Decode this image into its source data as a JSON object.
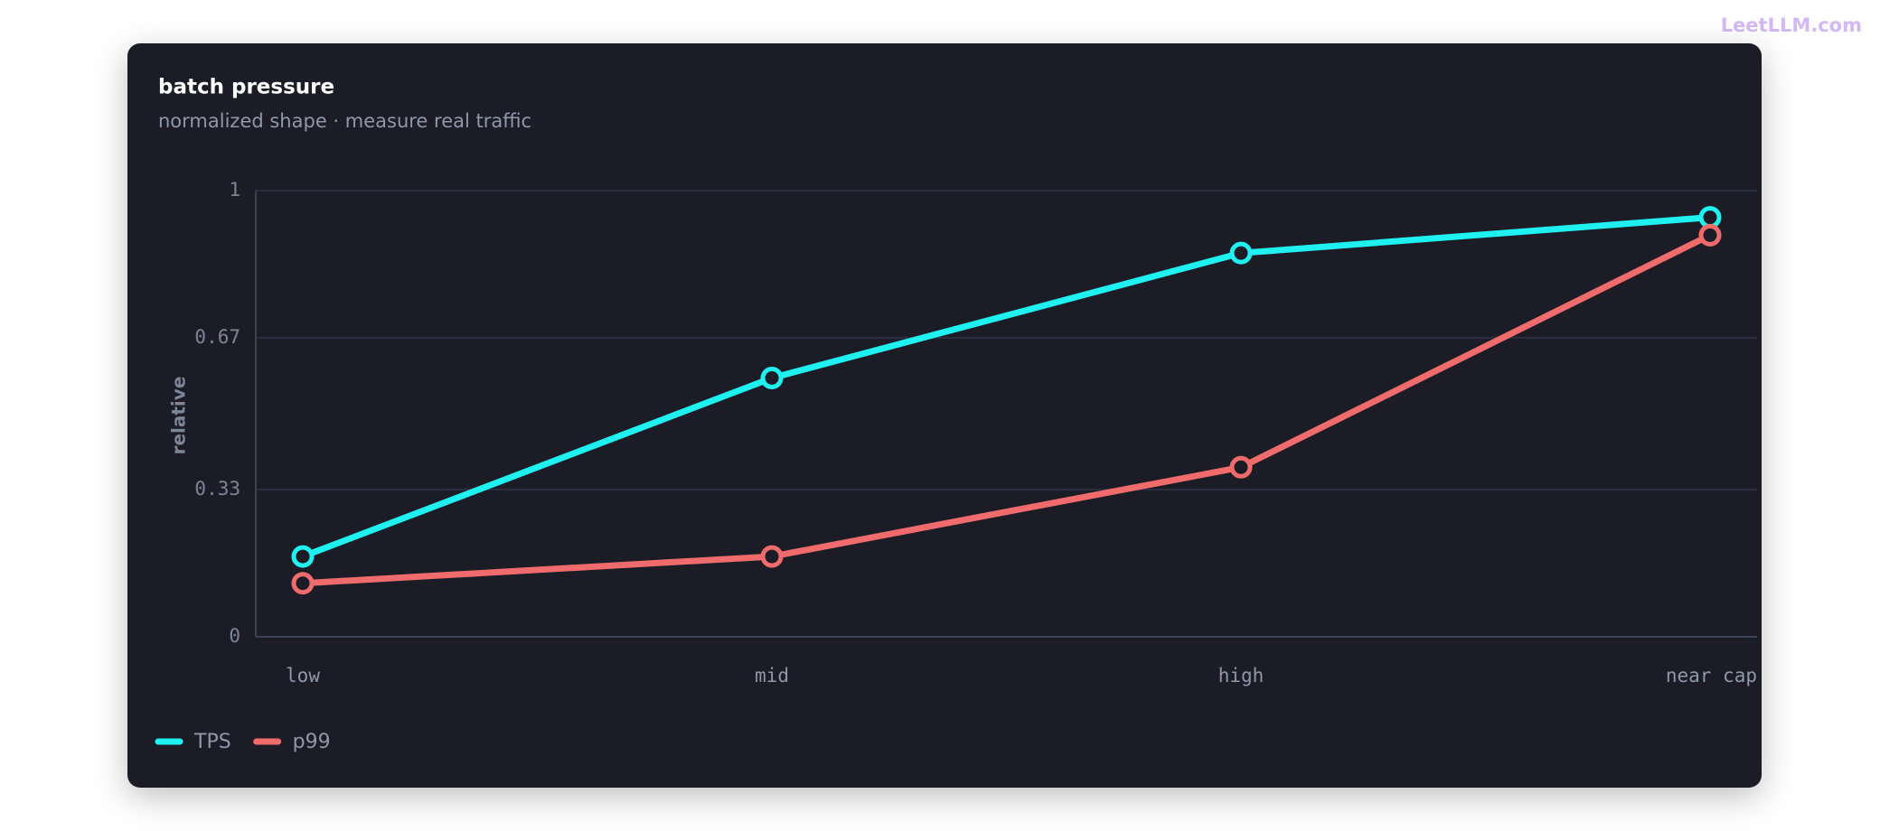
{
  "watermark": "LeetLLM.com",
  "chart_data": {
    "type": "line",
    "title": "batch pressure",
    "subtitle": "normalized shape · measure real traffic",
    "y_label": "relative",
    "categories": [
      "low",
      "mid",
      "high",
      "near cap"
    ],
    "series": [
      {
        "name": "TPS",
        "color": "#1ff0f0",
        "values": [
          0.18,
          0.58,
          0.86,
          0.94
        ]
      },
      {
        "name": "p99",
        "color": "#f06b6b",
        "values": [
          0.12,
          0.18,
          0.38,
          0.9
        ]
      }
    ],
    "ylim": [
      0,
      1
    ],
    "yticks": [
      0,
      0.33,
      0.67,
      1
    ],
    "grid": true
  }
}
